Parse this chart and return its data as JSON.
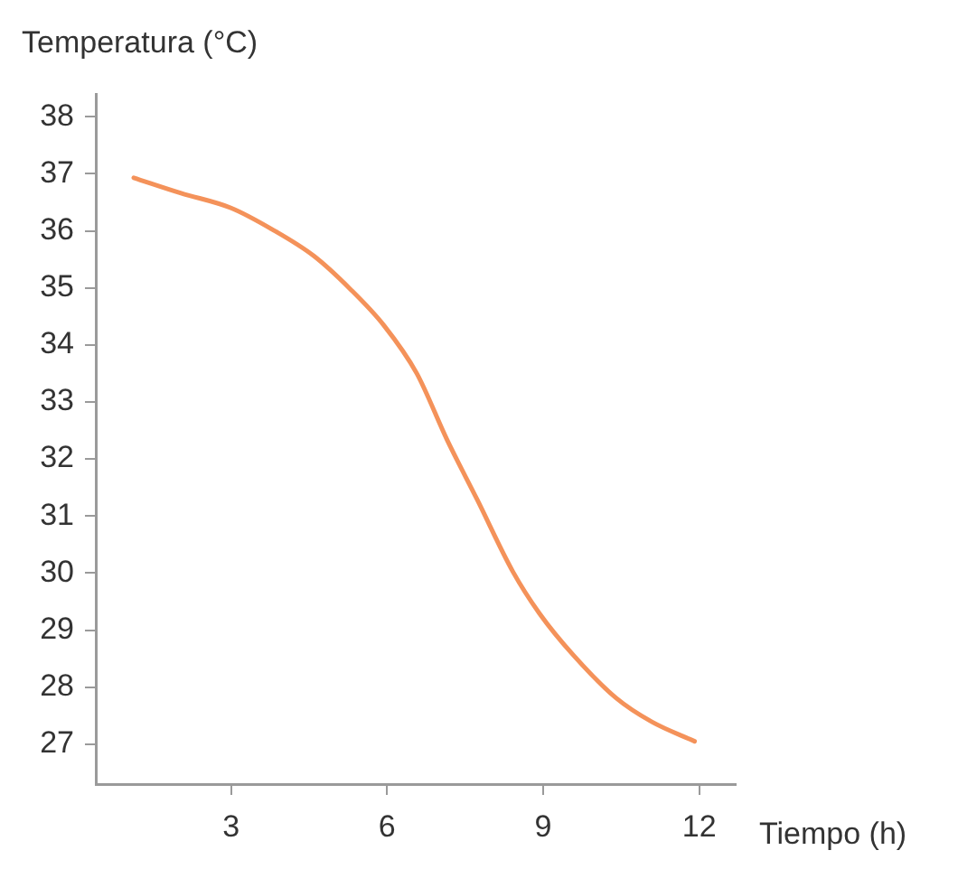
{
  "chart_data": {
    "type": "line",
    "xlabel": "Tiempo (h)",
    "ylabel": "Temperatura (°C)",
    "x": [
      1.13,
      2.04,
      3,
      3.78,
      4.59,
      5.29,
      5.94,
      6.57,
      7.15,
      7.73,
      8.42,
      8.93,
      9.59,
      10.4,
      11.09,
      11.91
    ],
    "series": [
      {
        "color": "#f4925a",
        "values": [
          36.93,
          36.66,
          36.4,
          36.03,
          35.56,
          34.98,
          34.34,
          33.5,
          32.34,
          31.29,
          30.02,
          29.29,
          28.55,
          27.81,
          27.39,
          27.05
        ]
      }
    ],
    "xlim": [
      0.4,
      12.7
    ],
    "xticks": [
      3,
      6,
      9,
      12
    ],
    "ylim": [
      26.3,
      38.4
    ],
    "yticks": [
      27,
      28,
      29,
      30,
      31,
      32,
      33,
      34,
      35,
      36,
      37,
      38
    ],
    "grid": false,
    "legend": false,
    "marker": "none",
    "line_style": "solid"
  }
}
